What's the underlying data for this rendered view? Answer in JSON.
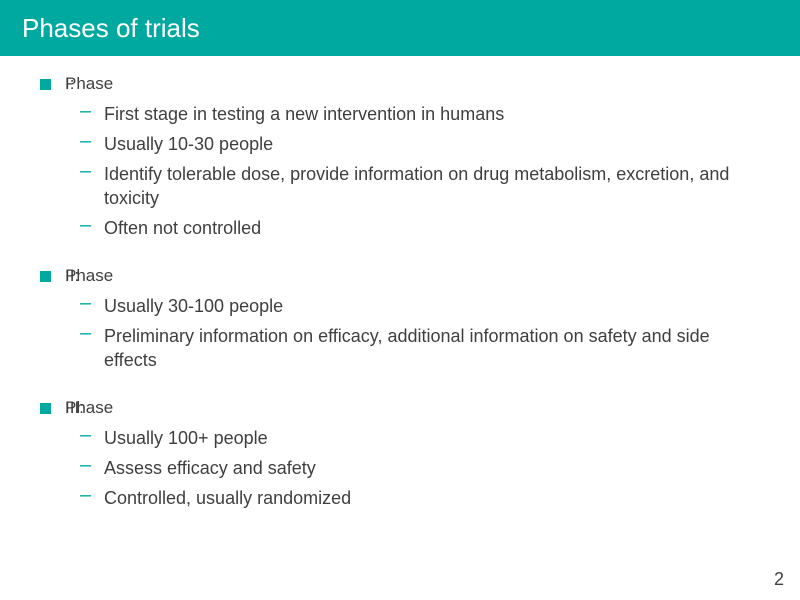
{
  "colors": {
    "accent": "#00a9a0",
    "text": "#3f3f3f",
    "title_text": "#ffffff",
    "background": "#ffffff"
  },
  "typography": {
    "title_fontsize": 26,
    "l1_fontsize": 17,
    "l2_fontsize": 18,
    "pagenum_fontsize": 18
  },
  "title": "Phases of trials",
  "page_number": "2",
  "sections": [
    {
      "heading_a": "Phase",
      "heading_b": "I:",
      "items": [
        "First stage in testing a new intervention in humans",
        "Usually 10-30 people",
        "Identify tolerable dose, provide information on drug metabolism, excretion, and toxicity",
        "Often not controlled"
      ]
    },
    {
      "heading_a": "Phase",
      "heading_b": "II:",
      "items": [
        "Usually 30-100 people",
        "Preliminary information on efficacy, additional information on safety and side effects"
      ]
    },
    {
      "heading_a": "Phase",
      "heading_b": "III:",
      "items": [
        "Usually 100+ people",
        "Assess efficacy and safety",
        "Controlled, usually randomized"
      ]
    }
  ]
}
